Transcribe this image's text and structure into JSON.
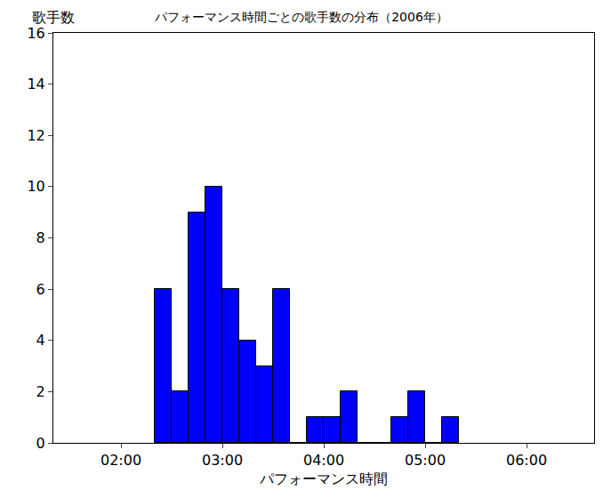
{
  "chart_data": {
    "type": "histogram",
    "title": "パフォーマンス時間ごとの歌手数の分布（2006年）",
    "x_label": "パフォーマンス時間",
    "y_label": "歌手数",
    "bins": [
      140,
      150,
      160,
      170,
      180,
      190,
      200,
      210,
      220,
      230,
      240,
      250,
      260,
      270,
      280,
      290,
      300,
      310,
      320
    ],
    "counts": [
      6,
      2,
      9,
      10,
      6,
      4,
      3,
      6,
      0,
      1,
      1,
      2,
      0,
      0,
      1,
      2,
      0,
      1
    ],
    "color": "#0000ff",
    "xlim": [
      80,
      400
    ],
    "xticks": [
      {
        "value": 120,
        "label": "02:00"
      },
      {
        "value": 180,
        "label": "03:00"
      },
      {
        "value": 240,
        "label": "04:00"
      },
      {
        "value": 300,
        "label": "05:00"
      },
      {
        "value": 360,
        "label": "06:00"
      }
    ],
    "ylim": [
      0,
      16
    ],
    "yticks": [
      0,
      2,
      4,
      6,
      8,
      10,
      12,
      14,
      16
    ],
    "grid": false
  }
}
